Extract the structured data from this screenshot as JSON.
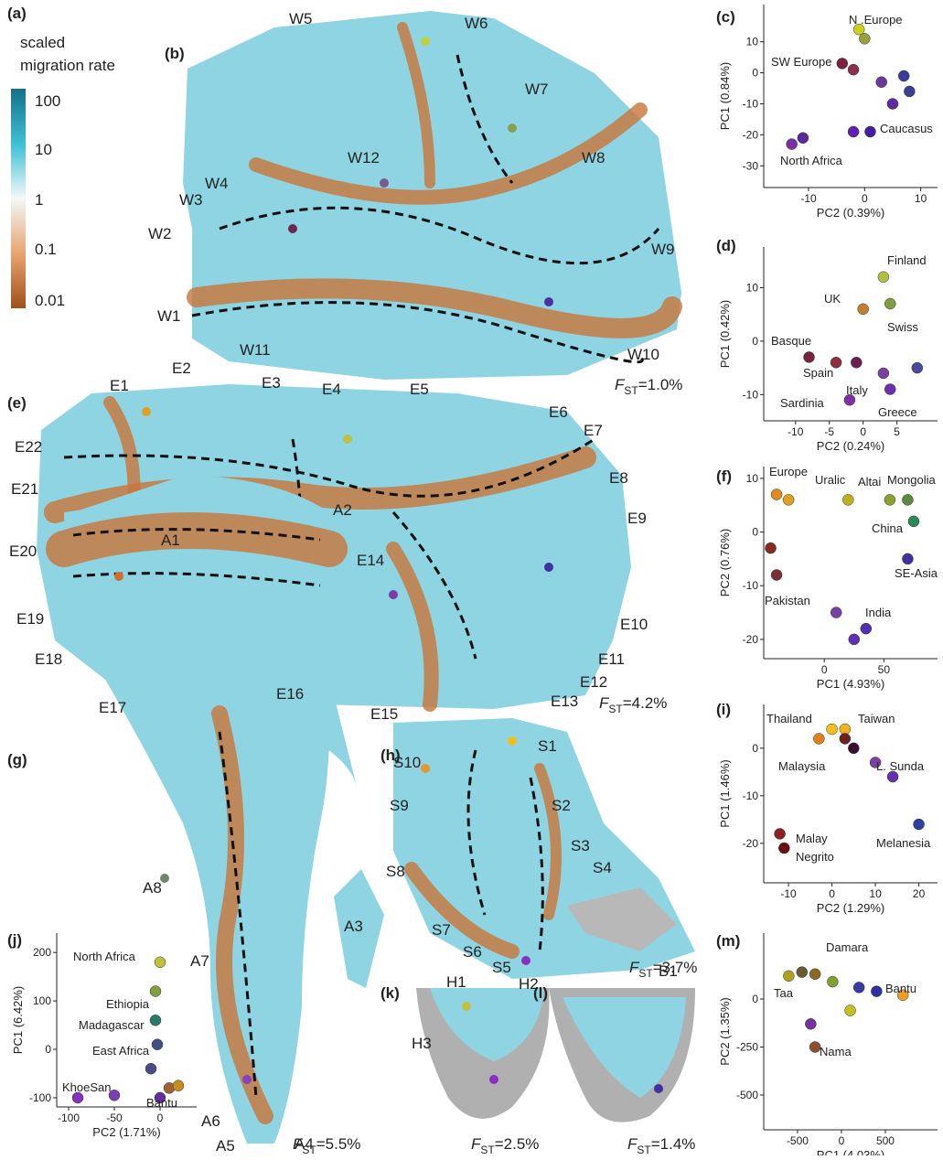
{
  "legend": {
    "panel": "(a)",
    "title": [
      "scaled",
      "migration rate"
    ],
    "ticks": [
      "100",
      "10",
      "1",
      "0.1",
      "0.01"
    ]
  },
  "maps": [
    {
      "panel": "(b)",
      "labels": [
        "W1",
        "W2",
        "W3",
        "W4",
        "W5",
        "W6",
        "W7",
        "W8",
        "W9",
        "W10",
        "W11",
        "W12"
      ],
      "fst": {
        "symbol": "F",
        "sub": "ST",
        "value": "=1.0%"
      }
    },
    {
      "panel": "(e)",
      "labels": [
        "E1",
        "E2",
        "E3",
        "E4",
        "E5",
        "E6",
        "E7",
        "E8",
        "E9",
        "E10",
        "E11",
        "E12",
        "E13",
        "E14",
        "E15",
        "E16",
        "E17",
        "E18",
        "E19",
        "E20",
        "E21",
        "E22"
      ],
      "fst": {
        "symbol": "F",
        "sub": "ST",
        "value": "=4.2%"
      }
    },
    {
      "panel": "(g)",
      "labels": [
        "A1",
        "A2",
        "A3",
        "A4",
        "A5",
        "A6",
        "A7",
        "A8"
      ],
      "fst": {
        "symbol": "F",
        "sub": "ST",
        "value": "=5.5%"
      }
    },
    {
      "panel": "(h)",
      "labels": [
        "S1",
        "S2",
        "S3",
        "S4",
        "S5",
        "S6",
        "S7",
        "S8",
        "S9",
        "S10"
      ],
      "fst": {
        "symbol": "F",
        "sub": "ST",
        "value": "=3.7%"
      }
    },
    {
      "panel": "(k)",
      "labels": [
        "H1",
        "H2",
        "H3"
      ],
      "fst": {
        "symbol": "F",
        "sub": "ST",
        "value": "=2.5%"
      }
    },
    {
      "panel": "(l)",
      "labels": [
        "B1"
      ],
      "fst": {
        "symbol": "F",
        "sub": "ST",
        "value": "=1.4%"
      }
    }
  ],
  "pca": [
    {
      "panel": "(c)",
      "xlabel": "PC2 (0.39%)",
      "ylabel": "PC1 (0.84%)",
      "xlim": [
        -18,
        13
      ],
      "ylim": [
        -37,
        22
      ],
      "xticks": [
        -10,
        0,
        10
      ],
      "yticks": [
        10,
        0,
        -10,
        -20,
        -30
      ],
      "groups": [
        "N .Europe",
        "SW Europe",
        "Caucasus",
        "North Africa"
      ],
      "points": [
        {
          "x": -1,
          "y": 14,
          "color": "#c8d020"
        },
        {
          "x": 0,
          "y": 11,
          "color": "#9aa040"
        },
        {
          "x": -4,
          "y": 3,
          "color": "#7a2040"
        },
        {
          "x": -2,
          "y": 1,
          "color": "#8a3050"
        },
        {
          "x": 3,
          "y": -3,
          "color": "#6a3a9a"
        },
        {
          "x": 7,
          "y": -1,
          "color": "#3a3a9a"
        },
        {
          "x": 5,
          "y": -10,
          "color": "#5a2aa0"
        },
        {
          "x": 8,
          "y": -6,
          "color": "#3a4090"
        },
        {
          "x": -11,
          "y": -21,
          "color": "#5a2a9a"
        },
        {
          "x": -13,
          "y": -23,
          "color": "#7a30a0"
        },
        {
          "x": -2,
          "y": -19,
          "color": "#6020b0"
        },
        {
          "x": 1,
          "y": -19,
          "color": "#4020a0"
        }
      ]
    },
    {
      "panel": "(d)",
      "xlabel": "PC2 (0.24%)",
      "ylabel": "PC1 (0.42%)",
      "xlim": [
        -14.7,
        11
      ],
      "ylim": [
        -14.9,
        17.6
      ],
      "xticks": [
        -10,
        -5,
        0,
        5
      ],
      "yticks": [
        10,
        0,
        -10
      ],
      "groups": [
        "Finland",
        "UK",
        "Swiss",
        "Basque",
        "Spain",
        "Italy",
        "Sardinia",
        "Greece"
      ],
      "points": [
        {
          "x": 3,
          "y": 12,
          "color": "#b0c040"
        },
        {
          "x": 4,
          "y": 7,
          "color": "#80a040"
        },
        {
          "x": -8,
          "y": -3,
          "color": "#7a2040"
        },
        {
          "x": -4,
          "y": -4,
          "color": "#8a3040"
        },
        {
          "x": -1,
          "y": -4,
          "color": "#6a2050"
        },
        {
          "x": 3,
          "y": -6,
          "color": "#7a40a0"
        },
        {
          "x": 4,
          "y": -9,
          "color": "#6a30b0"
        },
        {
          "x": -2,
          "y": -11,
          "color": "#8030a0"
        },
        {
          "x": 0,
          "y": 6,
          "color": "#c08030"
        },
        {
          "x": 8,
          "y": -5,
          "color": "#4a4aa0"
        }
      ]
    },
    {
      "panel": "(f)",
      "xlabel": "PC1 (4.93%)",
      "ylabel": "PC2 (0.76%)",
      "xlim": [
        -50.8,
        95
      ],
      "ylim": [
        -23.6,
        12.2
      ],
      "xticks": [
        0,
        50
      ],
      "yticks": [
        10,
        0,
        -10,
        -20
      ],
      "groups": [
        "Europe",
        "Uralic",
        "Altai",
        "Mongolia",
        "China",
        "SE-Asia",
        "Pakistan",
        "India"
      ],
      "points": [
        {
          "x": -40,
          "y": 7,
          "color": "#e08a20"
        },
        {
          "x": -30,
          "y": 6,
          "color": "#e0a020"
        },
        {
          "x": 20,
          "y": 6,
          "color": "#c0b020"
        },
        {
          "x": 55,
          "y": 6,
          "color": "#8aa030"
        },
        {
          "x": 70,
          "y": 6,
          "color": "#5a8a40"
        },
        {
          "x": 75,
          "y": 2,
          "color": "#2a8a5a"
        },
        {
          "x": 70,
          "y": -5,
          "color": "#4030a0"
        },
        {
          "x": -45,
          "y": -3,
          "color": "#8a2a20"
        },
        {
          "x": -40,
          "y": -8,
          "color": "#7a3030"
        },
        {
          "x": 10,
          "y": -15,
          "color": "#7a40a0"
        },
        {
          "x": 25,
          "y": -20,
          "color": "#6030b0"
        },
        {
          "x": 35,
          "y": -18,
          "color": "#5030b0"
        }
      ]
    },
    {
      "panel": "(i)",
      "xlabel": "PC2 (1.29%)",
      "ylabel": "PC1 (1.46%)",
      "xlim": [
        -15.7,
        24.3
      ],
      "ylim": [
        -28.3,
        9.2
      ],
      "xticks": [
        -10,
        0,
        10,
        20
      ],
      "yticks": [
        0,
        -10,
        -20
      ],
      "groups": [
        "Thailand",
        "Taiwan",
        "Malaysia",
        "L. Sunda",
        "Malay",
        "Negrito",
        "Melanesia"
      ],
      "points": [
        {
          "x": -3,
          "y": 2,
          "color": "#e08020"
        },
        {
          "x": 0,
          "y": 4,
          "color": "#f0c020"
        },
        {
          "x": 3,
          "y": 4,
          "color": "#f0b020"
        },
        {
          "x": 3,
          "y": 2,
          "color": "#6a2020"
        },
        {
          "x": 5,
          "y": 0,
          "color": "#3a1030"
        },
        {
          "x": 10,
          "y": -3,
          "color": "#7a40a0"
        },
        {
          "x": 14,
          "y": -6,
          "color": "#6030b0"
        },
        {
          "x": 20,
          "y": -16,
          "color": "#3040a0"
        },
        {
          "x": -12,
          "y": -18,
          "color": "#8a2020"
        },
        {
          "x": -11,
          "y": -21,
          "color": "#6a1010"
        }
      ]
    },
    {
      "panel": "(m)",
      "xlabel": "PC1 (4.03%)",
      "ylabel": "PC2 (1.35%)",
      "xlim": [
        -885,
        1094
      ],
      "ylim": [
        -681,
        343
      ],
      "xticks": [
        -500,
        0,
        500
      ],
      "yticks": [
        0,
        -250,
        -500
      ],
      "groups": [
        "Damara",
        "Taa",
        "Bantu",
        "Nama"
      ],
      "points": [
        {
          "x": -600,
          "y": 120,
          "color": "#b0a020"
        },
        {
          "x": -450,
          "y": 140,
          "color": "#6a5a30"
        },
        {
          "x": -300,
          "y": 130,
          "color": "#8a6a20"
        },
        {
          "x": -100,
          "y": 90,
          "color": "#80a030"
        },
        {
          "x": 200,
          "y": 60,
          "color": "#3a3aa0"
        },
        {
          "x": 400,
          "y": 40,
          "color": "#3030a0"
        },
        {
          "x": 700,
          "y": 20,
          "color": "#f0a020"
        },
        {
          "x": -350,
          "y": -130,
          "color": "#7a30a0"
        },
        {
          "x": -300,
          "y": -250,
          "color": "#8a5030"
        },
        {
          "x": 100,
          "y": -60,
          "color": "#c0c020"
        }
      ]
    },
    {
      "panel": "(j)",
      "xlabel": "PC2 (1.71%)",
      "ylabel": "PC1 (6.42%)",
      "xlim": [
        -113,
        40
      ],
      "ylim": [
        -119,
        240
      ],
      "xticks": [
        -100,
        -50,
        0
      ],
      "yticks": [
        200,
        100,
        0,
        -100
      ],
      "groups": [
        "North Africa",
        "Ethiopia",
        "Madagascar",
        "East Africa",
        "KhoeSan",
        "Bantu"
      ],
      "points": [
        {
          "x": 0,
          "y": 180,
          "color": "#c0c040"
        },
        {
          "x": -5,
          "y": 120,
          "color": "#80a040"
        },
        {
          "x": -5,
          "y": 60,
          "color": "#2a7a6a"
        },
        {
          "x": -3,
          "y": 10,
          "color": "#405080"
        },
        {
          "x": -10,
          "y": -40,
          "color": "#4a4a8a"
        },
        {
          "x": -90,
          "y": -100,
          "color": "#8a30c0"
        },
        {
          "x": -50,
          "y": -95,
          "color": "#7a40b0"
        },
        {
          "x": 10,
          "y": -80,
          "color": "#a06030"
        },
        {
          "x": 20,
          "y": -75,
          "color": "#c09020"
        },
        {
          "x": 0,
          "y": -100,
          "color": "#6030a0"
        }
      ]
    }
  ]
}
